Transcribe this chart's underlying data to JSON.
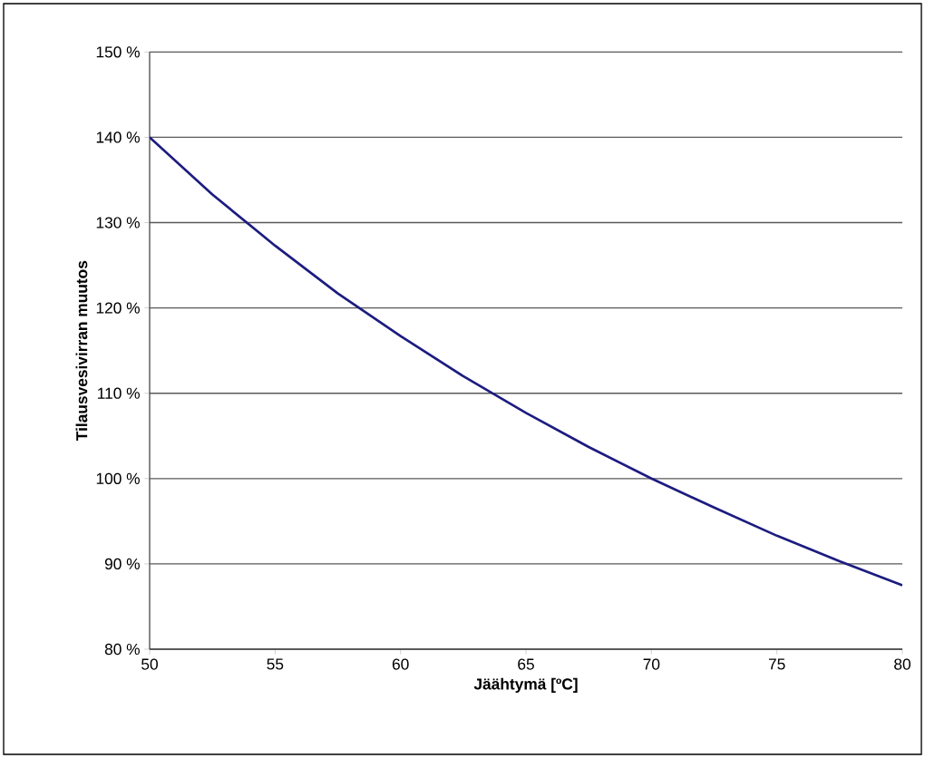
{
  "chart_data": {
    "type": "line",
    "xlabel": "Jäähtymä [ºC]",
    "ylabel": "Tilausvesivirran muutos",
    "x": [
      50,
      52.5,
      55,
      57.5,
      60,
      62.5,
      65,
      67.5,
      70,
      72.5,
      75,
      77.5,
      80
    ],
    "series": [
      {
        "color": "#1c1c80",
        "values": [
          140,
          133.3,
          127.3,
          121.7,
          116.7,
          112,
          107.7,
          103.7,
          100,
          96.6,
          93.3,
          90.3,
          87.5
        ]
      }
    ],
    "xlim": [
      50,
      80
    ],
    "ylim": [
      80,
      150
    ],
    "xticks": [
      50,
      55,
      60,
      65,
      70,
      75,
      80
    ],
    "yticks": [
      {
        "value": 80,
        "label": "80 %"
      },
      {
        "value": 90,
        "label": "90 %"
      },
      {
        "value": 100,
        "label": "100 %"
      },
      {
        "value": 110,
        "label": "110 %"
      },
      {
        "value": 120,
        "label": "120 %"
      },
      {
        "value": 130,
        "label": "130 %"
      },
      {
        "value": 140,
        "label": "140 %"
      },
      {
        "value": 150,
        "label": "150 %"
      }
    ],
    "grid": "y",
    "marker": "none",
    "line_style": "solid"
  }
}
